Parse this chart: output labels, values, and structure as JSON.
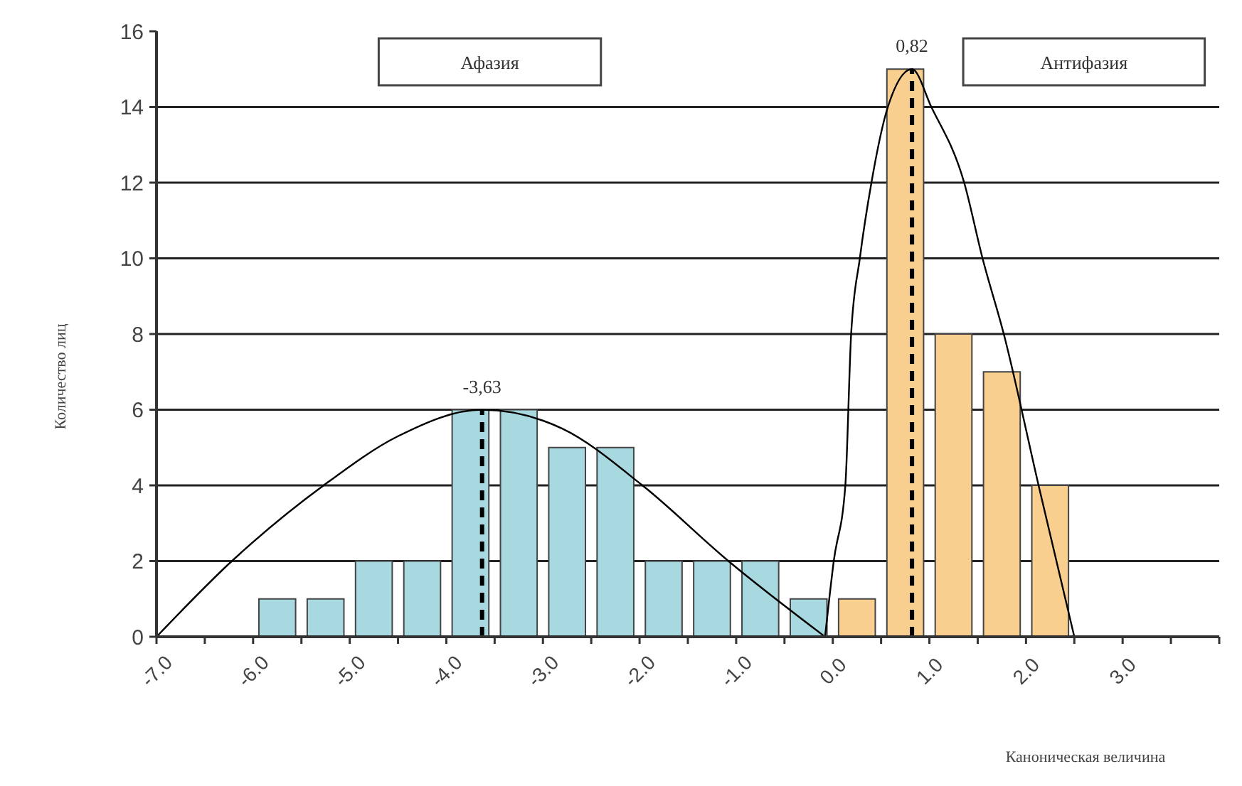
{
  "chart_data": {
    "type": "histogram",
    "xlabel": "Каноническая величина",
    "ylabel": "Количество лиц",
    "bins": [
      -6,
      -5.5,
      -5,
      -4.5,
      -4,
      -3.5,
      -3,
      -2.5,
      -2,
      -1.5,
      -1,
      -0.5,
      0,
      0.5,
      1,
      1.5,
      2,
      2.5
    ],
    "series": [
      {
        "color": "#a8d8e0",
        "values": [
          1,
          1,
          2,
          2,
          6,
          6,
          5,
          5,
          2,
          2,
          2,
          1,
          null,
          null,
          null,
          null,
          null
        ]
      },
      {
        "color": "#f8cf8e",
        "values": [
          null,
          null,
          null,
          null,
          null,
          null,
          null,
          null,
          null,
          null,
          null,
          null,
          1,
          15,
          8,
          7,
          4
        ]
      },
      {
        "type": "line",
        "color": "#000000",
        "x": [
          -7.0,
          -6.22,
          -5.27,
          -4.5,
          -3.63,
          -2.8,
          -1.97,
          -1.08,
          -0.08
        ],
        "values": [
          0,
          2,
          4,
          5.3,
          6,
          5.5,
          4,
          2,
          0
        ]
      },
      {
        "type": "line",
        "color": "#000000",
        "x": [
          -0.08,
          0.01,
          0.13,
          0.19,
          0.28,
          0.4,
          0.57,
          0.82,
          1.02,
          1.36,
          1.55,
          1.77,
          2.13,
          2.5
        ],
        "values": [
          0,
          2,
          4,
          8,
          10,
          12,
          14,
          15,
          14,
          12,
          10,
          8,
          4,
          0
        ]
      },
      {
        "type": "line",
        "color": "#000000",
        "line_style": "dashed",
        "x": [
          -3.63,
          -3.63
        ],
        "values": [
          0,
          6
        ]
      },
      {
        "type": "line",
        "color": "#000000",
        "line_style": "dashed",
        "x": [
          0.82,
          0.82
        ],
        "values": [
          0,
          15
        ]
      }
    ],
    "xlim": [
      -7,
      4
    ],
    "xticks": [
      {
        "value": -7,
        "label": "-7.0"
      },
      {
        "value": -6.5,
        "label": null
      },
      {
        "value": -6,
        "label": "-6.0"
      },
      {
        "value": -5.5,
        "label": null
      },
      {
        "value": -5,
        "label": "-5.0"
      },
      {
        "value": -4.5,
        "label": null
      },
      {
        "value": -4,
        "label": "-4.0"
      },
      {
        "value": -3.5,
        "label": null
      },
      {
        "value": -3,
        "label": "-3.0"
      },
      {
        "value": -2.5,
        "label": null
      },
      {
        "value": -2,
        "label": "-2.0"
      },
      {
        "value": -1.5,
        "label": null
      },
      {
        "value": -1,
        "label": "-1.0"
      },
      {
        "value": -0.5,
        "label": null
      },
      {
        "value": 0,
        "label": "0.0"
      },
      {
        "value": 0.5,
        "label": null
      },
      {
        "value": 1,
        "label": "1.0"
      },
      {
        "value": 1.5,
        "label": null
      },
      {
        "value": 2,
        "label": "2.0"
      },
      {
        "value": 2.5,
        "label": null
      },
      {
        "value": 3,
        "label": "3.0"
      },
      {
        "value": 3.5,
        "label": null
      },
      {
        "value": 4,
        "label": null
      }
    ],
    "ylim": [
      0,
      16
    ],
    "yticks": [
      0,
      2,
      4,
      6,
      8,
      10,
      12,
      14,
      16
    ],
    "grid": "y",
    "annotations": [
      {
        "text": "-3,63",
        "x": -3.63,
        "y": 6
      },
      {
        "text": "0,82",
        "x": 0.82,
        "y": 15
      },
      "Афазия",
      "Антифазия"
    ]
  }
}
